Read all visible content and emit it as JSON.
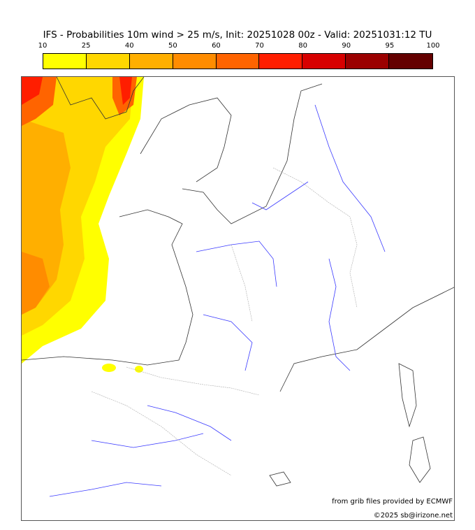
{
  "title": "IFS - Probabilities 10m wind > 25 m/s, Init: 20251028 00z - Valid: 20251031:12 TU",
  "colorbar": {
    "ticks": [
      "10",
      "25",
      "40",
      "50",
      "60",
      "70",
      "80",
      "90",
      "95",
      "100"
    ],
    "colors": [
      "#ffff00",
      "#ffd700",
      "#ffaf00",
      "#ff8c00",
      "#ff6400",
      "#ff1e00",
      "#d70000",
      "#9b0000",
      "#640000"
    ]
  },
  "credits": {
    "source": "from grib files provided by ECMWF",
    "copyright": "©2025 sb@irizone.net"
  }
}
